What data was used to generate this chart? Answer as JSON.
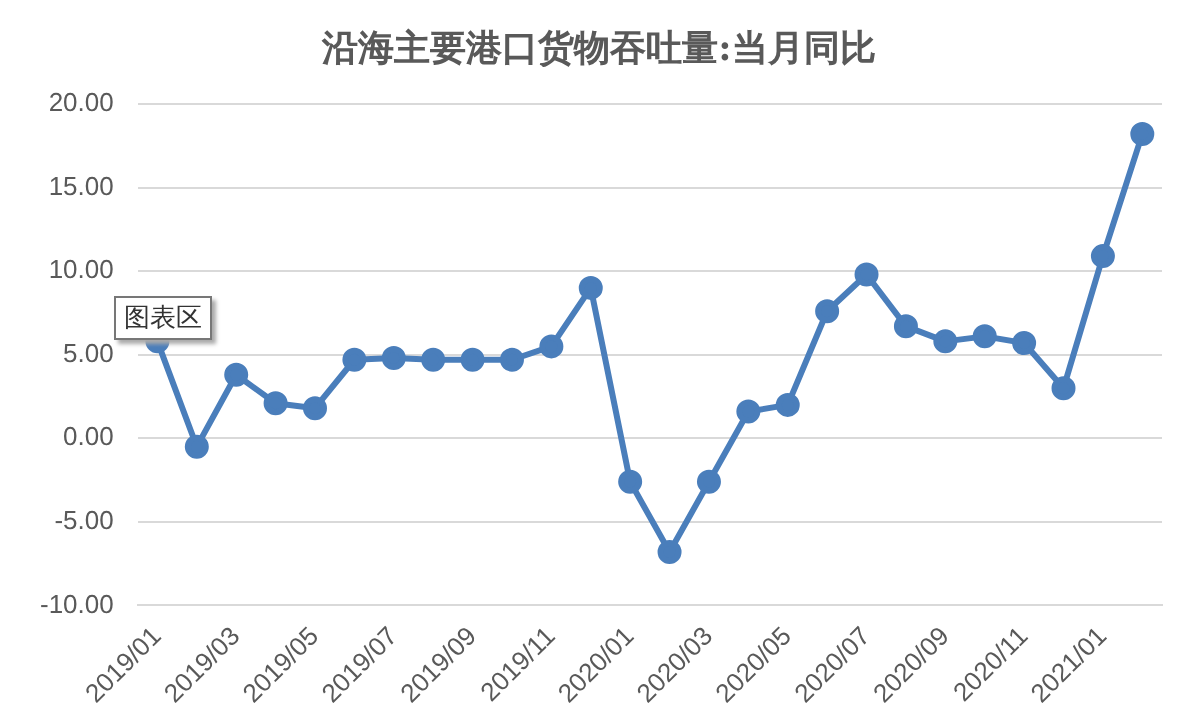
{
  "chart_data": {
    "type": "line",
    "title": "沿海主要港口货物吞吐量:当月同比",
    "categories": [
      "2019/01",
      null,
      "2019/03",
      null,
      "2019/05",
      null,
      "2019/07",
      null,
      "2019/09",
      null,
      "2019/11",
      null,
      "2020/01",
      null,
      "2020/03",
      null,
      "2020/05",
      null,
      "2020/07",
      null,
      "2020/09",
      null,
      "2020/11",
      null,
      "2021/01",
      null
    ],
    "series": [
      {
        "color": "#4a7ebb",
        "values": [
          5.8,
          -0.5,
          3.8,
          2.1,
          1.8,
          4.7,
          4.8,
          4.7,
          4.7,
          4.7,
          5.5,
          9.0,
          -2.6,
          -6.8,
          -2.6,
          1.6,
          2.0,
          7.6,
          9.8,
          6.7,
          5.8,
          6.1,
          5.7,
          3.0,
          10.9,
          18.2
        ]
      }
    ],
    "ylim": [
      -10,
      20
    ],
    "yticks": [
      {
        "value": -10,
        "label": "-10.00"
      },
      {
        "value": -5,
        "label": "-5.00"
      },
      {
        "value": 0,
        "label": "0.00"
      },
      {
        "value": 5,
        "label": "5.00"
      },
      {
        "value": 10,
        "label": "10.00"
      },
      {
        "value": 15,
        "label": "15.00"
      },
      {
        "value": 20,
        "label": "20.00"
      }
    ],
    "grid": "y",
    "legend": false,
    "marker": "circle",
    "line_style": "solid",
    "annotations": [
      "图表区"
    ]
  }
}
